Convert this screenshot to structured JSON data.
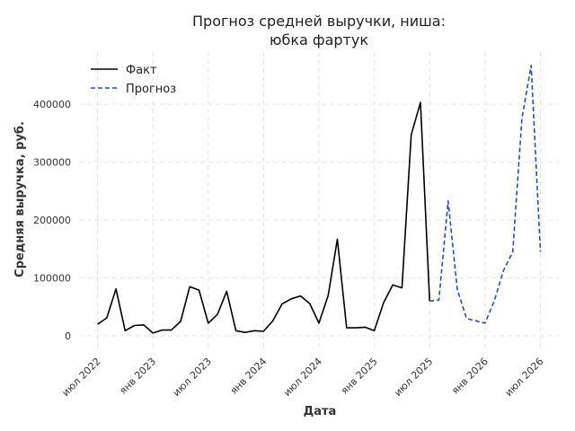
{
  "chart_data": {
    "type": "line",
    "title": [
      "Прогноз средней выручки, ниша:",
      "юбка фартук"
    ],
    "xlabel": "Дата",
    "ylabel": "Средняя выручка, руб.",
    "x_ticks": [
      {
        "label": "июл 2022",
        "date": "2022-07"
      },
      {
        "label": "янв 2023",
        "date": "2023-01"
      },
      {
        "label": "июл 2023",
        "date": "2023-07"
      },
      {
        "label": "янв 2024",
        "date": "2024-01"
      },
      {
        "label": "июл 2024",
        "date": "2024-07"
      },
      {
        "label": "янв 2025",
        "date": "2025-01"
      },
      {
        "label": "июл 2025",
        "date": "2025-07"
      },
      {
        "label": "янв 2026",
        "date": "2026-01"
      },
      {
        "label": "июл 2026",
        "date": "2026-07"
      }
    ],
    "y_ticks": [
      0,
      100000,
      200000,
      300000,
      400000
    ],
    "xlim": [
      "2022-05",
      "2026-09"
    ],
    "ylim": [
      -20000,
      490000
    ],
    "grid": true,
    "legend_position": "top-left",
    "series": [
      {
        "name": "Факт",
        "color": "#000000",
        "style": "solid",
        "points": [
          [
            "2022-07",
            20000
          ],
          [
            "2022-08",
            31000
          ],
          [
            "2022-09",
            81000
          ],
          [
            "2022-10",
            9000
          ],
          [
            "2022-11",
            18000
          ],
          [
            "2022-12",
            19000
          ],
          [
            "2023-01",
            5000
          ],
          [
            "2023-02",
            10000
          ],
          [
            "2023-03",
            10000
          ],
          [
            "2023-04",
            25000
          ],
          [
            "2023-05",
            85000
          ],
          [
            "2023-06",
            79000
          ],
          [
            "2023-07",
            22000
          ],
          [
            "2023-08",
            37000
          ],
          [
            "2023-09",
            77000
          ],
          [
            "2023-10",
            9000
          ],
          [
            "2023-11",
            6000
          ],
          [
            "2023-12",
            9000
          ],
          [
            "2024-01",
            8000
          ],
          [
            "2024-02",
            26000
          ],
          [
            "2024-03",
            55000
          ],
          [
            "2024-04",
            64000
          ],
          [
            "2024-05",
            69000
          ],
          [
            "2024-06",
            56000
          ],
          [
            "2024-07",
            22000
          ],
          [
            "2024-08",
            70000
          ],
          [
            "2024-09",
            167000
          ],
          [
            "2024-10",
            14000
          ],
          [
            "2024-11",
            14000
          ],
          [
            "2024-12",
            15000
          ],
          [
            "2025-01",
            9000
          ],
          [
            "2025-02",
            57000
          ],
          [
            "2025-03",
            88000
          ],
          [
            "2025-04",
            83000
          ],
          [
            "2025-05",
            347000
          ],
          [
            "2025-06",
            403000
          ],
          [
            "2025-07",
            60000
          ]
        ]
      },
      {
        "name": "Прогноз",
        "color": "#1f4fd1",
        "style": "dashed",
        "points": [
          [
            "2025-07",
            60000
          ],
          [
            "2025-08",
            62000
          ],
          [
            "2025-09",
            233000
          ],
          [
            "2025-10",
            80000
          ],
          [
            "2025-11",
            30000
          ],
          [
            "2025-12",
            26000
          ],
          [
            "2026-01",
            22000
          ],
          [
            "2026-02",
            60000
          ],
          [
            "2026-03",
            113000
          ],
          [
            "2026-04",
            145000
          ],
          [
            "2026-05",
            375000
          ],
          [
            "2026-06",
            467000
          ],
          [
            "2026-07",
            145000
          ]
        ]
      }
    ]
  }
}
